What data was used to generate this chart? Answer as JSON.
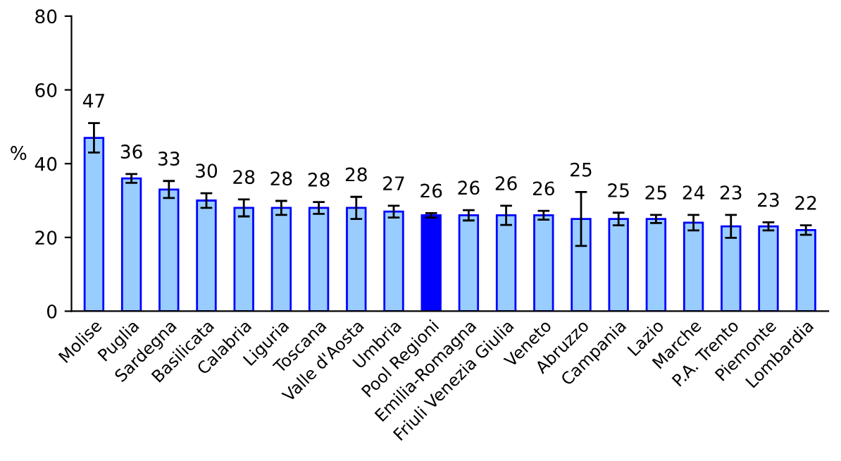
{
  "chart_data": {
    "type": "bar",
    "ylabel": "%",
    "categories": [
      "Molise",
      "Puglia",
      "Sardegna",
      "Basilicata",
      "Calabria",
      "Liguria",
      "Toscana",
      "Valle d'Aosta",
      "Umbria",
      "Pool Regioni",
      "Emilia-Romagna",
      "Friuli Venezia Giulia",
      "Veneto",
      "Abruzzo",
      "Campania",
      "Lazio",
      "Marche",
      "P.A. Trento",
      "Piemonte",
      "Lombardia"
    ],
    "values": [
      47,
      36,
      33,
      30,
      28,
      28,
      28,
      28,
      27,
      26,
      26,
      26,
      26,
      25,
      25,
      25,
      24,
      23,
      23,
      22
    ],
    "errors": [
      4,
      1.2,
      2.3,
      2,
      2.3,
      1.9,
      1.6,
      3,
      1.6,
      0.6,
      1.4,
      2.6,
      1.2,
      7.3,
      1.7,
      1.1,
      2.1,
      3.1,
      1.1,
      1.3
    ],
    "colors": [
      "#99ccff",
      "#99ccff",
      "#99ccff",
      "#99ccff",
      "#99ccff",
      "#99ccff",
      "#99ccff",
      "#99ccff",
      "#99ccff",
      "#0000ff",
      "#99ccff",
      "#99ccff",
      "#99ccff",
      "#99ccff",
      "#99ccff",
      "#99ccff",
      "#99ccff",
      "#99ccff",
      "#99ccff",
      "#99ccff"
    ],
    "ylim": [
      0,
      80
    ],
    "yticks": [
      0,
      20,
      40,
      60,
      80
    ],
    "data_labels": true,
    "grid": false,
    "legend": false
  }
}
